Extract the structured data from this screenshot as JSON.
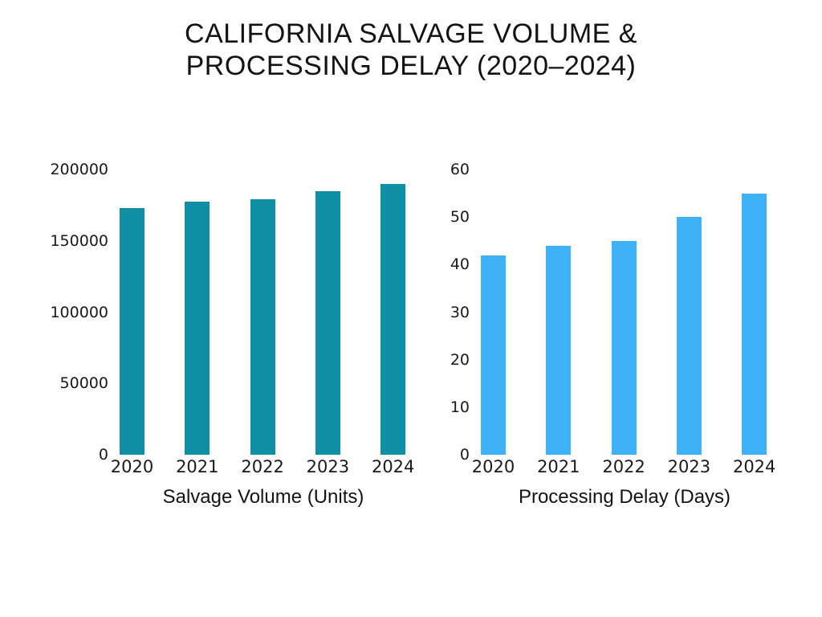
{
  "page": {
    "title_line1": "CALIFORNIA SALVAGE VOLUME &",
    "title_line2": "PROCESSING DELAY (2020–2024)",
    "background_color": "#ffffff",
    "text_color": "#121212"
  },
  "chart_data": [
    {
      "type": "bar",
      "title": "Salvage Volume (Units)",
      "xlabel": "Salvage Volume (Units)",
      "ylabel": "",
      "categories": [
        "2020",
        "2021",
        "2022",
        "2023",
        "2024"
      ],
      "values": [
        173000,
        177500,
        179000,
        185000,
        190000
      ],
      "ylim": [
        0,
        200000
      ],
      "yticks": [
        0,
        50000,
        100000,
        150000,
        200000
      ],
      "bar_color": "#0f8fa4",
      "grid": false,
      "legend_position": "none"
    },
    {
      "type": "bar",
      "title": "Processing Delay (Days)",
      "xlabel": "Processing Delay (Days)",
      "ylabel": "",
      "categories": [
        "2020",
        "2021",
        "2022",
        "2023",
        "2024"
      ],
      "values": [
        42,
        44,
        45,
        50,
        55
      ],
      "ylim": [
        0,
        60
      ],
      "yticks": [
        0,
        10,
        20,
        30,
        40,
        50,
        60
      ],
      "bar_color": "#3eb1f9",
      "grid": false,
      "legend_position": "none"
    }
  ]
}
